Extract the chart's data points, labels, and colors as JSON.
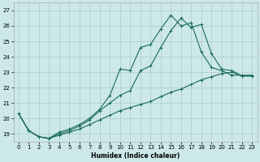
{
  "xlabel": "Humidex (Indice chaleur)",
  "bg_color": "#cce8e8",
  "grid_color": "#aacccc",
  "line_color": "#1a6b5a",
  "xlim": [
    -0.5,
    23.5
  ],
  "ylim": [
    18.5,
    27.5
  ],
  "xticks": [
    0,
    1,
    2,
    3,
    4,
    5,
    6,
    7,
    8,
    9,
    10,
    11,
    12,
    13,
    14,
    15,
    16,
    17,
    18,
    19,
    20,
    21,
    22,
    23
  ],
  "yticks": [
    19,
    20,
    21,
    22,
    23,
    24,
    25,
    26,
    27
  ],
  "line1_x": [
    0,
    1,
    2,
    3,
    4,
    5,
    6,
    7,
    8,
    9,
    10,
    11,
    12,
    13,
    14,
    15,
    16,
    17,
    18,
    19,
    20,
    21,
    22,
    23
  ],
  "line1_y": [
    20.3,
    19.2,
    18.8,
    18.7,
    19.1,
    19.3,
    19.6,
    20.0,
    20.6,
    21.5,
    23.2,
    23.1,
    24.6,
    24.8,
    25.8,
    26.7,
    26.0,
    26.2,
    24.3,
    23.3,
    23.1,
    22.8,
    22.8,
    22.8
  ],
  "line2_x": [
    0,
    1,
    2,
    3,
    4,
    5,
    6,
    7,
    8,
    9,
    10,
    11,
    12,
    13,
    14,
    15,
    16,
    17,
    18,
    19,
    20,
    21,
    22,
    23
  ],
  "line2_y": [
    20.3,
    19.2,
    18.8,
    18.7,
    19.0,
    19.2,
    19.5,
    19.9,
    20.5,
    21.0,
    21.5,
    21.8,
    23.1,
    23.4,
    24.6,
    25.7,
    26.5,
    25.9,
    26.1,
    24.2,
    23.2,
    23.1,
    22.75,
    22.75
  ],
  "line3_x": [
    0,
    1,
    2,
    3,
    4,
    5,
    6,
    7,
    8,
    9,
    10,
    11,
    12,
    13,
    14,
    15,
    16,
    17,
    18,
    19,
    20,
    21,
    22,
    23
  ],
  "line3_y": [
    20.3,
    19.2,
    18.8,
    18.7,
    18.9,
    19.1,
    19.3,
    19.6,
    19.9,
    20.2,
    20.5,
    20.7,
    20.9,
    21.1,
    21.4,
    21.7,
    21.9,
    22.2,
    22.5,
    22.7,
    22.9,
    23.0,
    22.75,
    22.75
  ]
}
